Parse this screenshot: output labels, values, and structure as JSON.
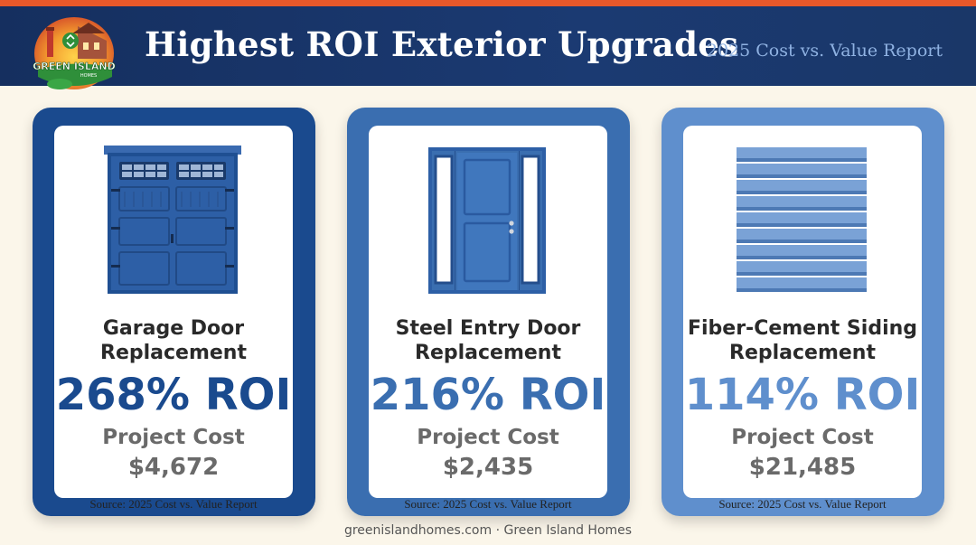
{
  "header": {
    "title": "Highest ROI Exterior Upgrades",
    "subtitle": "2025 Cost vs. Value Report",
    "logo": {
      "line1": "GREEN ISLAND",
      "line2": "HOMES",
      "icon": "house-recycle-logo"
    }
  },
  "colors": {
    "accent_stripe": "#e8582a",
    "header_bg": "#1b3a72",
    "page_bg": "#fbf6ea",
    "card1": "#1a4a8e",
    "card2": "#3a6eb0",
    "card3": "#5f8fcd"
  },
  "cards": [
    {
      "icon": "garage-door-icon",
      "name_line1": "Garage Door",
      "name_line2": "Replacement",
      "roi": "268% ROI",
      "cost_label": "Project Cost",
      "cost": "$4,672",
      "source": "Source: 2025 Cost vs. Value Report",
      "color": "#1a4a8e"
    },
    {
      "icon": "steel-entry-door-icon",
      "name_line1": "Steel Entry Door",
      "name_line2": "Replacement",
      "roi": "216% ROI",
      "cost_label": "Project Cost",
      "cost": "$2,435",
      "source": "Source: 2025 Cost vs. Value Report",
      "color": "#3a6eb0"
    },
    {
      "icon": "siding-panel-icon",
      "name_line1": "Fiber-Cement Siding",
      "name_line2": "Replacement",
      "roi": "114% ROI",
      "cost_label": "Project Cost",
      "cost": "$21,485",
      "source": "Source: 2025 Cost vs. Value Report",
      "color": "#5f8fcd"
    }
  ],
  "footer": "greenislandhomes.com · Green Island Homes"
}
